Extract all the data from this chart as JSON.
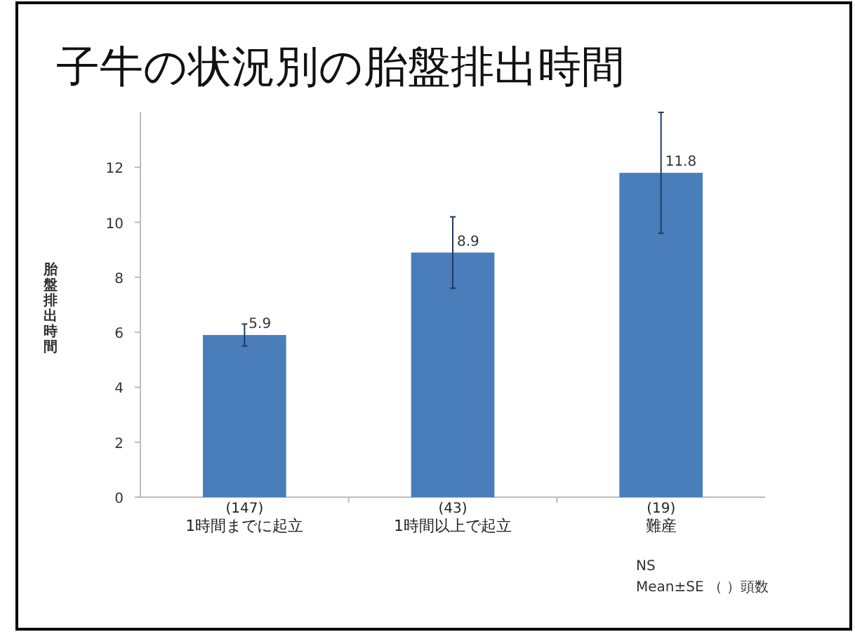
{
  "chart_data": {
    "type": "bar",
    "title": "子牛の状況別の胎盤排出時間",
    "ylabel": "胎盤排出時間",
    "categories": [
      "1時間までに起立",
      "1時間以上で起立",
      "難産"
    ],
    "values": [
      5.9,
      8.9,
      11.8
    ],
    "errors": [
      0.4,
      1.3,
      2.2
    ],
    "color": "#4a7ebb",
    "data_labels": true,
    "ylim": [
      0,
      14
    ],
    "yticks": [
      0,
      2,
      4,
      6,
      8,
      10,
      12
    ],
    "annotations": [
      {
        "text": "(147)",
        "x": "1時間までに起立",
        "y": 0
      },
      {
        "text": "(43)",
        "x": "1時間以上で起立",
        "y": 0
      },
      {
        "text": "(19)",
        "x": "難産",
        "y": 0
      },
      "NS",
      "Mean±SE （ ）頭数"
    ]
  }
}
